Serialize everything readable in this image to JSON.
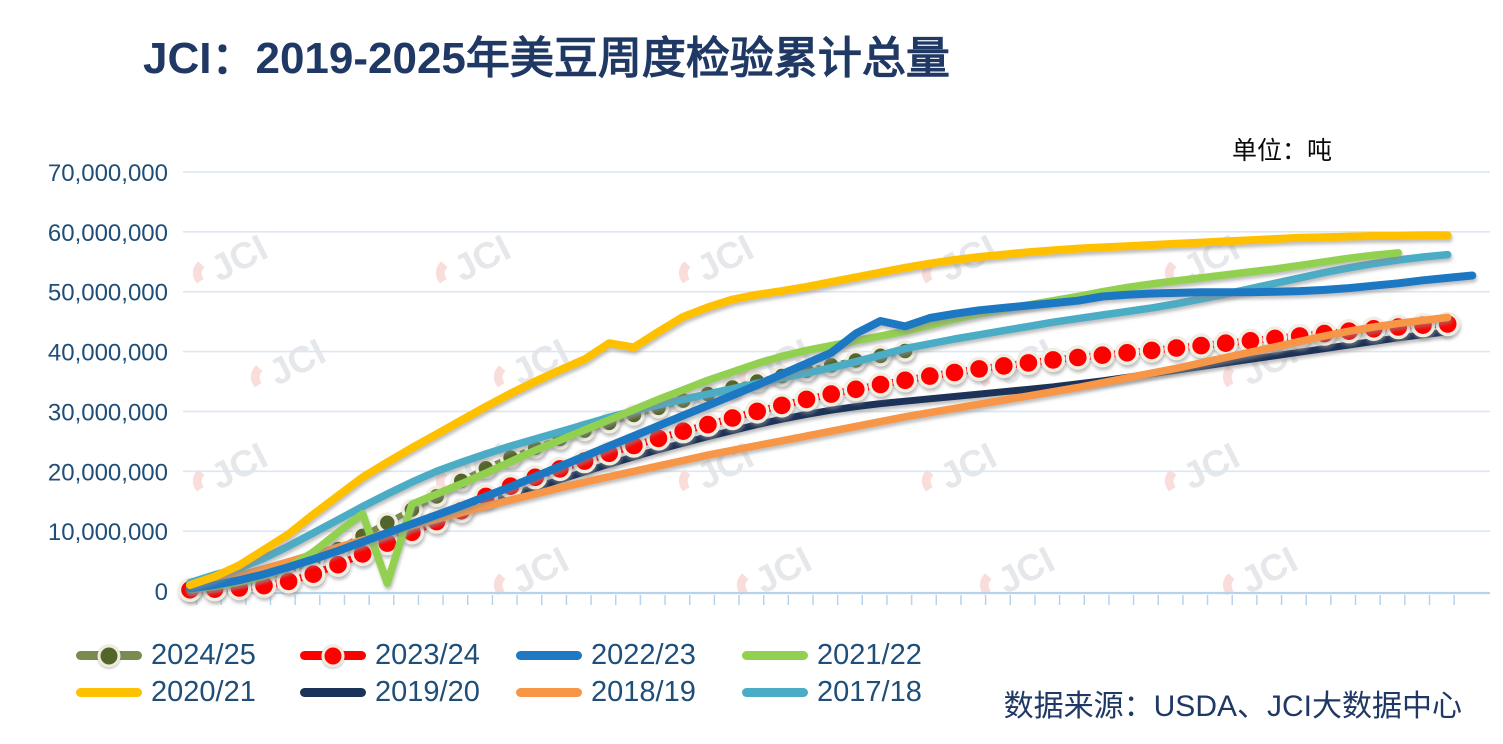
{
  "header": {
    "title": "JCI：2019-2025年美豆周度检验累计总量",
    "unit_label": "单位：吨"
  },
  "footer": {
    "source_label": "数据来源：USDA、JCI大数据中心"
  },
  "watermark": {
    "text": "JCI"
  },
  "colors": {
    "title": "#1F3864",
    "axis_label": "#1F4E79",
    "legend_label": "#1F4E79",
    "source": "#1F3864",
    "gridline": "#DCE7F3",
    "axis_line": "#B7D3EC",
    "marker_ring": "#F0EDE2"
  },
  "chart_data": {
    "type": "line",
    "title": "JCI：2019-2025年美豆周度检验累计总量",
    "unit": "吨",
    "value_multiplier": 1000000,
    "x_axis": {
      "kind": "week-of-marketing-year",
      "tick_count": 52,
      "tick_labels_visible": false
    },
    "y_axis": {
      "min": 0,
      "max": 70000000,
      "tick_interval": 10000000
    },
    "grid": "horizontal",
    "legend_position": "bottom",
    "series": [
      {
        "name": "2024/25",
        "color": "#7B8A4E",
        "marker": true,
        "marker_color": "#52652B",
        "line_width": 6,
        "marker_radius": 9,
        "z": 1,
        "values": [
          0.3,
          0.7,
          1.3,
          2.2,
          3.4,
          5.0,
          7.0,
          9.2,
          11.4,
          13.6,
          15.8,
          18.4,
          20.5,
          22.3,
          23.9,
          25.4,
          26.8,
          28.1,
          29.4,
          30.6,
          31.8,
          32.9,
          34.0,
          35.0,
          35.9,
          36.8,
          37.7,
          38.5,
          39.3,
          40.1
        ]
      },
      {
        "name": "2023/24",
        "color": "#FE0000",
        "marker": true,
        "marker_color": "#FE0000",
        "line_width": 7,
        "marker_radius": 10.5,
        "z": 2,
        "values": [
          0.2,
          0.3,
          0.5,
          0.9,
          1.6,
          2.8,
          4.4,
          6.2,
          8.0,
          9.8,
          11.6,
          13.4,
          15.8,
          17.5,
          19.0,
          20.4,
          21.7,
          23.0,
          24.3,
          25.5,
          26.7,
          27.8,
          28.9,
          30.0,
          31.0,
          32.0,
          32.9,
          33.7,
          34.5,
          35.2,
          35.9,
          36.5,
          37.1,
          37.6,
          38.1,
          38.6,
          39.0,
          39.4,
          39.8,
          40.2,
          40.6,
          41.0,
          41.4,
          41.8,
          42.2,
          42.6,
          43.0,
          43.4,
          43.8,
          44.1,
          44.4,
          44.6
        ]
      },
      {
        "name": "2022/23",
        "color": "#1E78C2",
        "marker": false,
        "line_width": 8,
        "z": 6,
        "values": [
          0.4,
          1.0,
          1.8,
          2.8,
          4.0,
          5.3,
          6.7,
          8.2,
          9.7,
          11.2,
          12.7,
          14.2,
          15.8,
          17.4,
          19.1,
          20.8,
          22.5,
          24.2,
          25.9,
          27.6,
          29.3,
          31.0,
          32.7,
          34.4,
          36.2,
          38.0,
          39.8,
          43.0,
          45.1,
          44.2,
          45.6,
          46.3,
          46.9,
          47.3,
          47.7,
          48.1,
          48.5,
          49.2,
          49.5,
          49.7,
          49.8,
          49.9,
          49.9,
          49.9,
          50.0,
          50.1,
          50.3,
          50.6,
          51.0,
          51.4,
          51.9,
          52.3,
          52.7
        ]
      },
      {
        "name": "2021/22",
        "color": "#92D050",
        "marker": false,
        "line_width": 7.5,
        "z": 5,
        "values": [
          0.3,
          0.8,
          1.5,
          2.5,
          4.0,
          6.5,
          9.8,
          12.9,
          1.3,
          14.5,
          16.2,
          17.9,
          19.7,
          21.6,
          23.5,
          25.2,
          26.9,
          28.6,
          30.3,
          32.0,
          33.6,
          35.2,
          36.6,
          38.0,
          39.2,
          40.2,
          41.0,
          41.8,
          42.6,
          43.4,
          44.4,
          45.4,
          46.3,
          47.1,
          47.8,
          48.5,
          49.2,
          50.0,
          50.7,
          51.3,
          51.8,
          52.3,
          52.8,
          53.3,
          53.8,
          54.4,
          55.0,
          55.6,
          56.1,
          56.5
        ]
      },
      {
        "name": "2020/21",
        "color": "#FFC000",
        "marker": false,
        "line_width": 8,
        "z": 7,
        "values": [
          1.0,
          2.4,
          4.3,
          6.9,
          9.5,
          12.8,
          15.9,
          19.0,
          21.5,
          23.9,
          26.2,
          28.5,
          30.8,
          33.0,
          35.0,
          36.9,
          38.7,
          41.4,
          40.7,
          43.3,
          45.8,
          47.4,
          48.7,
          49.5,
          50.1,
          50.8,
          51.6,
          52.4,
          53.2,
          54.0,
          54.7,
          55.3,
          55.8,
          56.2,
          56.6,
          56.9,
          57.2,
          57.4,
          57.6,
          57.8,
          58.0,
          58.2,
          58.4,
          58.6,
          58.8,
          59.0,
          59.1,
          59.2,
          59.3,
          59.3,
          59.4,
          59.4
        ]
      },
      {
        "name": "2019/20",
        "color": "#1C3359",
        "marker": false,
        "line_width": 7,
        "z": 0,
        "values": [
          0.6,
          1.4,
          2.3,
          3.3,
          4.4,
          5.6,
          6.9,
          8.2,
          9.5,
          10.8,
          12.1,
          13.4,
          14.7,
          16.0,
          17.3,
          18.6,
          19.9,
          21.2,
          22.4,
          23.6,
          24.7,
          25.8,
          26.8,
          27.8,
          28.7,
          29.5,
          30.2,
          30.8,
          31.3,
          31.7,
          32.1,
          32.5,
          32.9,
          33.3,
          33.7,
          34.1,
          34.6,
          35.1,
          35.7,
          36.3,
          36.9,
          37.5,
          38.1,
          38.7,
          39.3,
          39.9,
          40.5,
          41.1,
          41.7,
          42.3,
          42.8,
          43.3
        ]
      },
      {
        "name": "2018/19",
        "color": "#F79646",
        "marker": false,
        "line_width": 7.5,
        "z": 3,
        "values": [
          0.7,
          1.6,
          2.6,
          3.7,
          4.9,
          6.1,
          7.3,
          8.5,
          9.7,
          10.9,
          12.0,
          13.1,
          14.2,
          15.2,
          16.2,
          17.2,
          18.2,
          19.1,
          20.0,
          20.9,
          21.8,
          22.7,
          23.5,
          24.3,
          25.1,
          25.9,
          26.7,
          27.5,
          28.3,
          29.1,
          29.8,
          30.5,
          31.2,
          31.9,
          32.6,
          33.3,
          34.0,
          34.8,
          35.6,
          36.4,
          37.2,
          38.1,
          39.0,
          39.9,
          40.8,
          41.7,
          42.6,
          43.4,
          44.1,
          44.7,
          45.2,
          45.7
        ]
      },
      {
        "name": "2017/18",
        "color": "#4BACC6",
        "marker": false,
        "line_width": 7.5,
        "z": 4,
        "values": [
          1.4,
          2.7,
          3.8,
          5.5,
          7.5,
          9.7,
          11.9,
          14.1,
          16.2,
          18.2,
          20.0,
          21.5,
          22.9,
          24.2,
          25.4,
          26.6,
          27.8,
          29.0,
          30.1,
          31.1,
          32.0,
          32.9,
          33.8,
          34.7,
          35.6,
          36.4,
          37.3,
          38.3,
          39.4,
          40.5,
          41.3,
          42.1,
          42.8,
          43.5,
          44.2,
          44.9,
          45.5,
          46.1,
          46.7,
          47.3,
          48.0,
          48.8,
          49.6,
          50.5,
          51.4,
          52.3,
          53.2,
          54.0,
          54.7,
          55.3,
          55.8,
          56.2
        ]
      }
    ]
  }
}
